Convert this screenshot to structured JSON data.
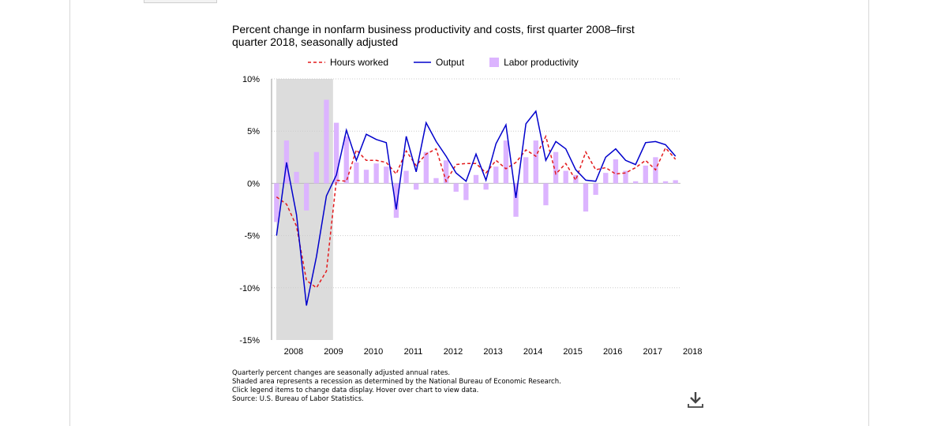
{
  "chart": {
    "title": "Percent change in nonfarm business productivity and costs, first quarter 2008–first quarter 2018, seasonally adjusted",
    "notes": [
      "Quarterly percent changes are seasonally adjusted annual rates.",
      "Shaded area represents a recession as determined by the National Bureau of Economic Research.",
      "Click legend items to change data display. Hover over chart to view data.",
      "Source: U.S. Bureau of Labor Statistics."
    ]
  },
  "legend": {
    "hours": "Hours worked",
    "output": "Output",
    "productivity": "Labor productivity"
  },
  "icons": {
    "download": "download-icon"
  },
  "colors": {
    "hours": "#e31a1c",
    "output": "#0000cc",
    "productivity": "#dcb4ff",
    "recession": "#dcdcdc",
    "grid": "#cccccc"
  },
  "chart_data": {
    "type": "bar",
    "title": "Percent change in nonfarm business productivity and costs, first quarter 2008–first quarter 2018, seasonally adjusted",
    "ylim": [
      -15,
      10
    ],
    "y_ticks": [
      10,
      5,
      0,
      -5,
      -10,
      -15
    ],
    "y_tick_labels": [
      "10%",
      "5%",
      "0%",
      "-5%",
      "-10%",
      "-15%"
    ],
    "x_tick_labels": [
      "2008",
      "2009",
      "2010",
      "2011",
      "2012",
      "2013",
      "2014",
      "2015",
      "2016",
      "2017",
      "2018"
    ],
    "grid": true,
    "legend_position": "top",
    "recession": {
      "start": "2008 Q1",
      "end": "2009 Q2"
    },
    "categories": [
      "2008 Q1",
      "2008 Q2",
      "2008 Q3",
      "2008 Q4",
      "2009 Q1",
      "2009 Q2",
      "2009 Q3",
      "2009 Q4",
      "2010 Q1",
      "2010 Q2",
      "2010 Q3",
      "2010 Q4",
      "2011 Q1",
      "2011 Q2",
      "2011 Q3",
      "2011 Q4",
      "2012 Q1",
      "2012 Q2",
      "2012 Q3",
      "2012 Q4",
      "2013 Q1",
      "2013 Q2",
      "2013 Q3",
      "2013 Q4",
      "2014 Q1",
      "2014 Q2",
      "2014 Q3",
      "2014 Q4",
      "2015 Q1",
      "2015 Q2",
      "2015 Q3",
      "2015 Q4",
      "2016 Q1",
      "2016 Q2",
      "2016 Q3",
      "2016 Q4",
      "2017 Q1",
      "2017 Q2",
      "2017 Q3",
      "2017 Q4",
      "2018 Q1"
    ],
    "series": [
      {
        "name": "Labor productivity",
        "type": "bar",
        "values": [
          -3.7,
          4.1,
          1.1,
          -2.6,
          3.0,
          8.0,
          5.8,
          4.5,
          2.0,
          1.3,
          1.9,
          1.6,
          -3.3,
          1.2,
          -0.6,
          3.0,
          0.5,
          2.2,
          -0.8,
          -1.6,
          0.8,
          -0.6,
          1.6,
          4.1,
          -3.2,
          2.5,
          4.1,
          -2.1,
          3.0,
          1.2,
          0.8,
          -2.7,
          -1.1,
          1.0,
          2.3,
          1.2,
          0.2,
          1.7,
          2.5,
          0.2,
          0.3
        ]
      },
      {
        "name": "Output",
        "type": "line",
        "values": [
          -5.0,
          2.0,
          -3.0,
          -11.7,
          -7.0,
          -1.2,
          0.8,
          5.1,
          2.2,
          4.7,
          4.2,
          3.9,
          -2.5,
          4.5,
          1.1,
          5.8,
          4.0,
          2.6,
          1.0,
          0.2,
          2.8,
          0.3,
          3.8,
          5.6,
          -1.4,
          5.7,
          6.9,
          2.2,
          4.0,
          3.3,
          1.3,
          0.3,
          0.2,
          2.5,
          3.3,
          2.2,
          1.8,
          3.9,
          4.0,
          3.7,
          2.6
        ]
      },
      {
        "name": "Hours worked",
        "type": "line",
        "dashed": true,
        "values": [
          -1.3,
          -2.0,
          -4.1,
          -9.3,
          -10.0,
          -8.4,
          0.3,
          0.2,
          3.2,
          2.2,
          2.2,
          2.0,
          0.9,
          3.1,
          1.7,
          2.8,
          3.3,
          0.2,
          1.8,
          1.9,
          1.9,
          1.0,
          2.2,
          1.4,
          2.0,
          3.2,
          2.6,
          4.5,
          0.9,
          1.9,
          0.3,
          3.0,
          1.3,
          1.5,
          0.9,
          1.0,
          1.5,
          2.2,
          1.3,
          3.4,
          2.3
        ]
      }
    ]
  }
}
